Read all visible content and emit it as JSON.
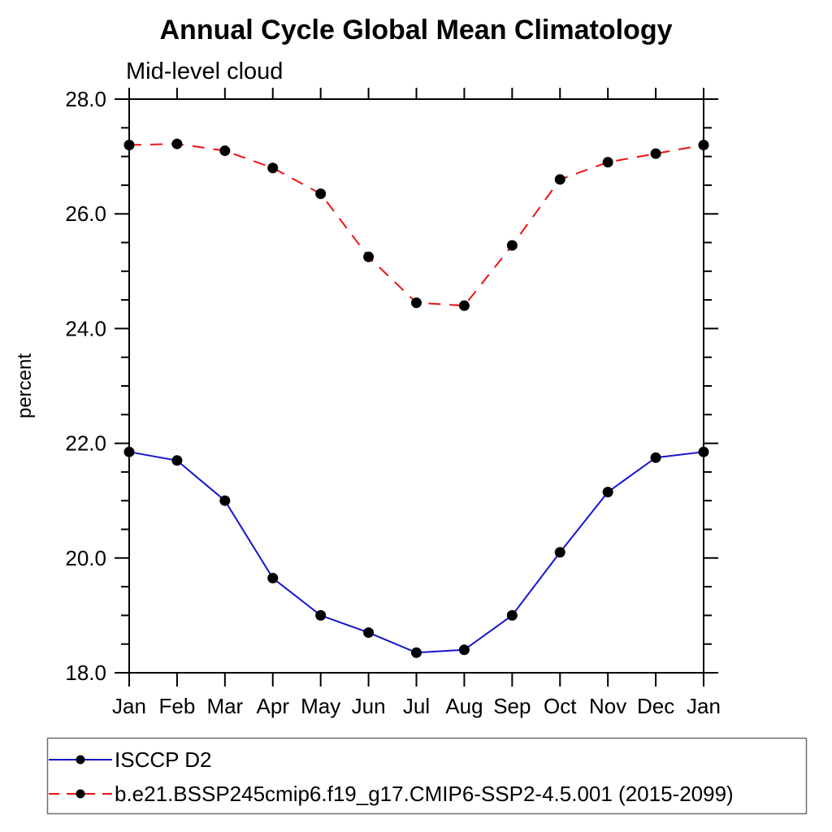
{
  "chart_data": {
    "type": "line",
    "title": "Annual Cycle Global Mean Climatology",
    "subtitle": "Mid-level cloud",
    "ylabel": "percent",
    "categories": [
      "Jan",
      "Feb",
      "Mar",
      "Apr",
      "May",
      "Jun",
      "Jul",
      "Aug",
      "Sep",
      "Oct",
      "Nov",
      "Dec",
      "Jan"
    ],
    "series": [
      {
        "name": "ISCCP D2",
        "line_style": "solid",
        "color": "#1414cd",
        "marker": "filled-circle",
        "marker_color": "#000000",
        "values": [
          21.85,
          21.7,
          21.0,
          19.65,
          19.0,
          18.7,
          18.35,
          18.4,
          19.0,
          20.1,
          21.15,
          21.75,
          21.85
        ]
      },
      {
        "name": "b.e21.BSSP245cmip6.f19_g17.CMIP6-SSP2-4.5.001 (2015-2099)",
        "line_style": "dashed",
        "color": "#ef1111",
        "marker": "filled-circle",
        "marker_color": "#000000",
        "values": [
          27.2,
          27.22,
          27.1,
          26.8,
          26.35,
          25.25,
          24.45,
          24.4,
          25.45,
          26.6,
          26.9,
          27.05,
          27.2
        ]
      }
    ],
    "ylim": [
      18.0,
      28.0
    ],
    "yticks": [
      18.0,
      20.0,
      22.0,
      24.0,
      26.0,
      28.0
    ],
    "ytick_labels": [
      "18.0",
      "20.0",
      "22.0",
      "24.0",
      "26.0",
      "28.0"
    ],
    "y_minor_step": 0.5,
    "grid": false,
    "legend_position": "bottom",
    "axis_color": "#000000",
    "legend_border_color": "#6e6e6e"
  }
}
